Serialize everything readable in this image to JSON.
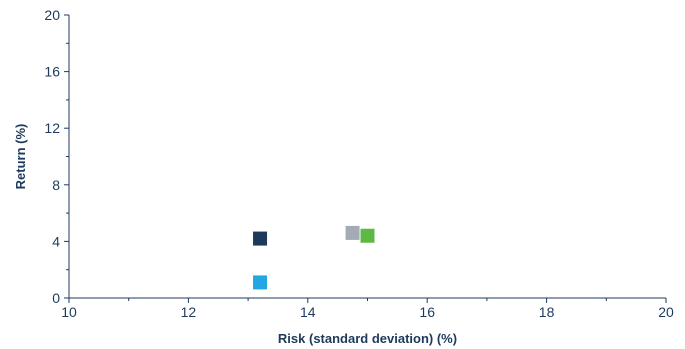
{
  "chart_data": {
    "type": "scatter",
    "title": "",
    "xlabel": "Risk (standard deviation) (%)",
    "ylabel": "Return (%)",
    "xlim": [
      10,
      20
    ],
    "ylim": [
      0,
      20
    ],
    "x_ticks": [
      10,
      12,
      14,
      16,
      18,
      20
    ],
    "y_ticks": [
      0,
      4,
      8,
      12,
      16,
      20
    ],
    "x_minor_ticks": [
      11,
      13,
      15,
      17,
      19
    ],
    "y_minor_ticks": [
      2,
      6,
      10,
      14,
      18
    ],
    "grid": false,
    "marker": "square",
    "points": [
      {
        "x": 13.2,
        "y": 4.2,
        "color": "#1d3a5c"
      },
      {
        "x": 13.2,
        "y": 1.1,
        "color": "#22a7e0"
      },
      {
        "x": 14.75,
        "y": 4.6,
        "color": "#a3acb4"
      },
      {
        "x": 15.0,
        "y": 4.4,
        "color": "#5cb946"
      }
    ]
  }
}
